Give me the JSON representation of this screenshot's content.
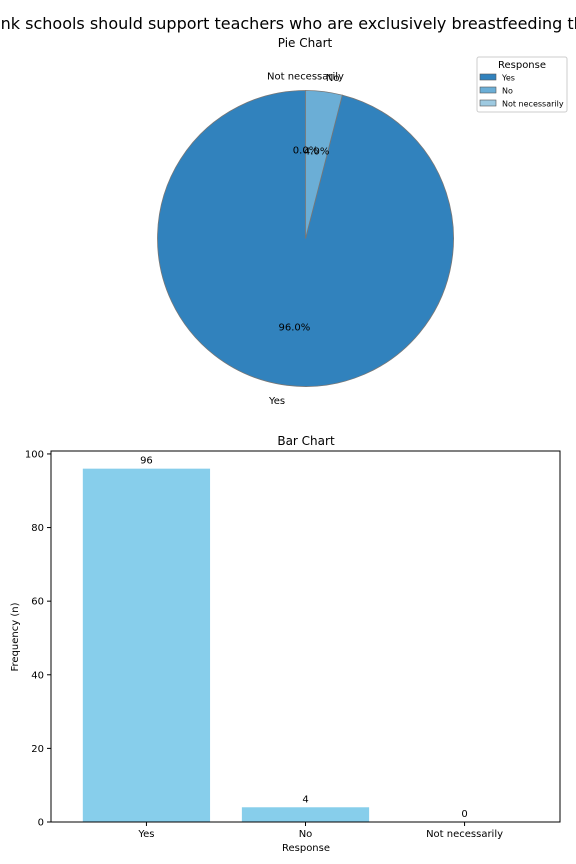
{
  "suptitle": "ink schools should support teachers who are exclusively breastfeeding th",
  "chart_data": [
    {
      "type": "pie",
      "title": "Pie Chart",
      "categories": [
        "Yes",
        "No",
        "Not necessarily"
      ],
      "values": [
        96,
        4,
        0
      ],
      "percent_labels": [
        "96.0%",
        "4.0%",
        "0.0%"
      ],
      "colors": [
        "#3182bd",
        "#6baed6",
        "#9ecae1"
      ],
      "start_angle_deg": 90,
      "direction": "counterclockwise",
      "legend": {
        "title": "Response",
        "placement": "top-right",
        "entries": [
          "Yes",
          "No",
          "Not necessarily"
        ]
      }
    },
    {
      "type": "bar",
      "title": "Bar Chart",
      "categories": [
        "Yes",
        "No",
        "Not necessarily"
      ],
      "values": [
        96,
        4,
        0
      ],
      "value_labels": [
        "96",
        "4",
        "0"
      ],
      "color": "#87ceeb",
      "xlabel": "Response",
      "ylabel": "Frequency (n)",
      "ylim": [
        0,
        100.8
      ],
      "yticks": [
        0,
        20,
        40,
        60,
        80,
        100
      ],
      "grid": false
    }
  ]
}
